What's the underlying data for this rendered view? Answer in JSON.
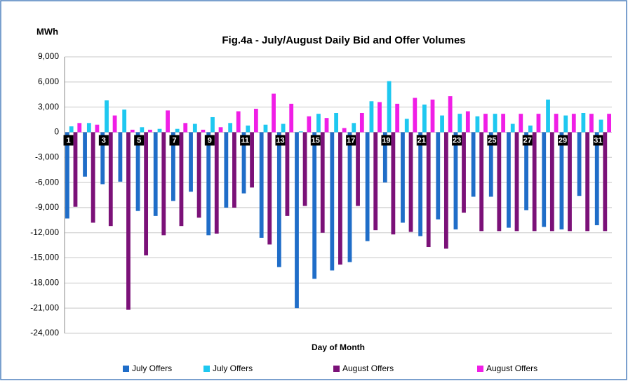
{
  "chart_data": {
    "type": "bar",
    "title": "Fig.4a - July/August Daily Bid and Offer Volumes",
    "y_label": "MWh",
    "x_label": "Day of Month",
    "categories": [
      "1",
      null,
      "3",
      null,
      "5",
      null,
      "7",
      null,
      "9",
      null,
      "11",
      null,
      "13",
      null,
      "15",
      null,
      "17",
      null,
      "19",
      null,
      "21",
      null,
      "23",
      null,
      "25",
      null,
      "27",
      null,
      "29",
      null,
      "31"
    ],
    "series": [
      {
        "name": "July Offers",
        "color": "#1f6dc8",
        "values": [
          -10300,
          -5300,
          -6200,
          -5900,
          -9400,
          -10000,
          -8200,
          -7100,
          -12300,
          -9000,
          -7300,
          -12600,
          -16100,
          -21000,
          -17500,
          -16500,
          -15500,
          -13000,
          -6000,
          -10800,
          -12400,
          -10400,
          -11600,
          -7700,
          -7700,
          -11400,
          -9300,
          -11300,
          -11600,
          -7600,
          -11100
        ]
      },
      {
        "name": "July Offers",
        "color": "#1ec8f0",
        "values": [
          700,
          1100,
          3800,
          2700,
          600,
          400,
          400,
          1000,
          1800,
          1100,
          800,
          900,
          1000,
          100,
          2200,
          2300,
          1100,
          3700,
          6100,
          1600,
          3300,
          2000,
          2200,
          1900,
          2200,
          1000,
          800,
          3900,
          2000,
          2300,
          1500
        ]
      },
      {
        "name": "August Offers",
        "color": "#7b1178",
        "values": [
          -8900,
          -10800,
          -11200,
          -21200,
          -14700,
          -12300,
          -11200,
          -10200,
          -12100,
          -9000,
          -6600,
          -13400,
          -10000,
          -8800,
          -12000,
          -15800,
          -8800,
          -11700,
          -12200,
          -11900,
          -13700,
          -13900,
          -9600,
          -11800,
          -11800,
          -11800,
          -11800,
          -11800,
          -11800,
          -11800,
          -11800
        ]
      },
      {
        "name": "August Offers",
        "color": "#f01ee6",
        "values": [
          1100,
          900,
          2000,
          300,
          300,
          2600,
          1100,
          300,
          600,
          2500,
          2800,
          4600,
          3400,
          1900,
          1700,
          500,
          2300,
          3600,
          3400,
          4100,
          3900,
          4300,
          2500,
          2200,
          2200,
          2200,
          2200,
          2200,
          2200,
          2200,
          2200
        ]
      }
    ],
    "ylim": [
      -24000,
      9000
    ],
    "yticks": [
      {
        "value": -24000,
        "label": "-24,000"
      },
      {
        "value": -21000,
        "label": "-21,000"
      },
      {
        "value": -18000,
        "label": "-18,000"
      },
      {
        "value": -15000,
        "label": "-15,000"
      },
      {
        "value": -12000,
        "label": "-12,000"
      },
      {
        "value": -9000,
        "label": "-9,000"
      },
      {
        "value": -6000,
        "label": "-6,000"
      },
      {
        "value": -3000,
        "label": "-3,000"
      },
      0,
      {
        "value": 3000,
        "label": "3,000"
      },
      {
        "value": 6000,
        "label": "6,000"
      },
      {
        "value": 9000,
        "label": "9,000"
      }
    ],
    "grid": true
  }
}
